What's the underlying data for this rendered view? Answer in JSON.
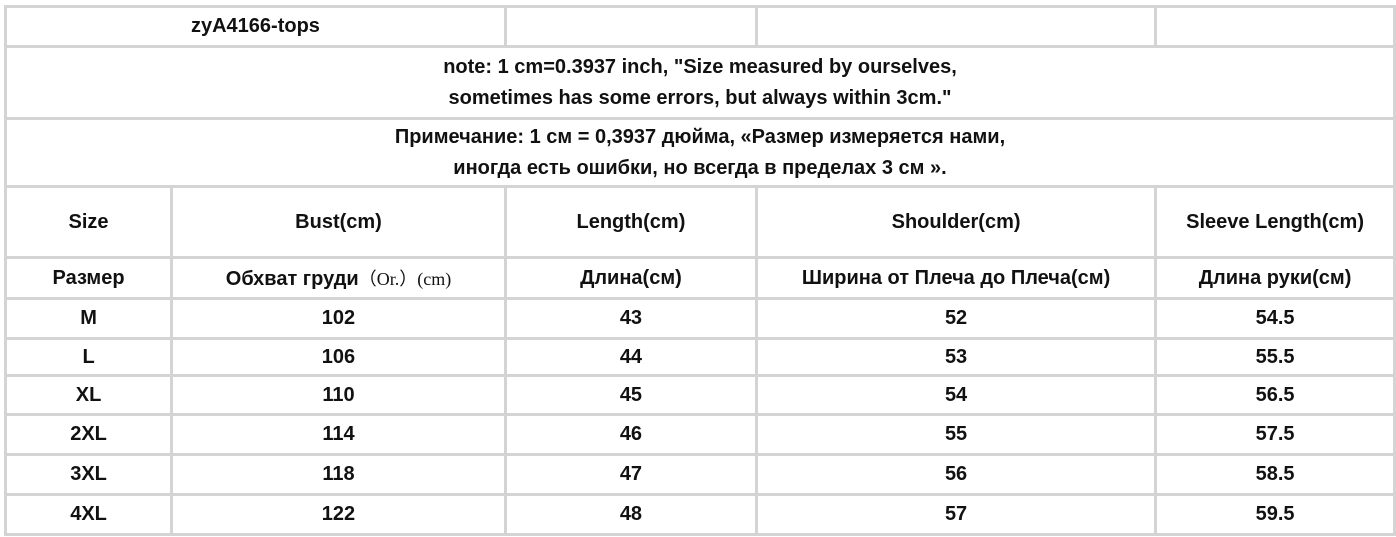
{
  "title": "zyA4166-tops",
  "note_en": [
    "note: 1 cm=0.3937 inch, \"Size measured by ourselves,",
    "sometimes has some errors, but always within 3cm.\""
  ],
  "note_ru": [
    "Примечание: 1 см = 0,3937 дюйма, «Размер измеряется нами,",
    "иногда есть ошибки, но всегда в пределах 3 см »."
  ],
  "headers_en": [
    "Size",
    "Bust(cm)",
    "Length(cm)",
    "Shoulder(cm)",
    "Sleeve Length(cm)"
  ],
  "headers_ru": {
    "size": "Размер",
    "bust": "Обхват груди",
    "bust_suffix": "（Or.）(cm)",
    "length": "Длина(см)",
    "shoulder": "Ширина от Плеча до Плеча(см)",
    "sleeve": "Длина руки(см)"
  },
  "rows": [
    [
      "M",
      "102",
      "43",
      "52",
      "54.5"
    ],
    [
      "L",
      "106",
      "44",
      "53",
      "55.5"
    ],
    [
      "XL",
      "110",
      "45",
      "54",
      "56.5"
    ],
    [
      "2XL",
      "114",
      "46",
      "55",
      "57.5"
    ],
    [
      "3XL",
      "118",
      "47",
      "56",
      "58.5"
    ],
    [
      "4XL",
      "122",
      "48",
      "57",
      "59.5"
    ]
  ]
}
